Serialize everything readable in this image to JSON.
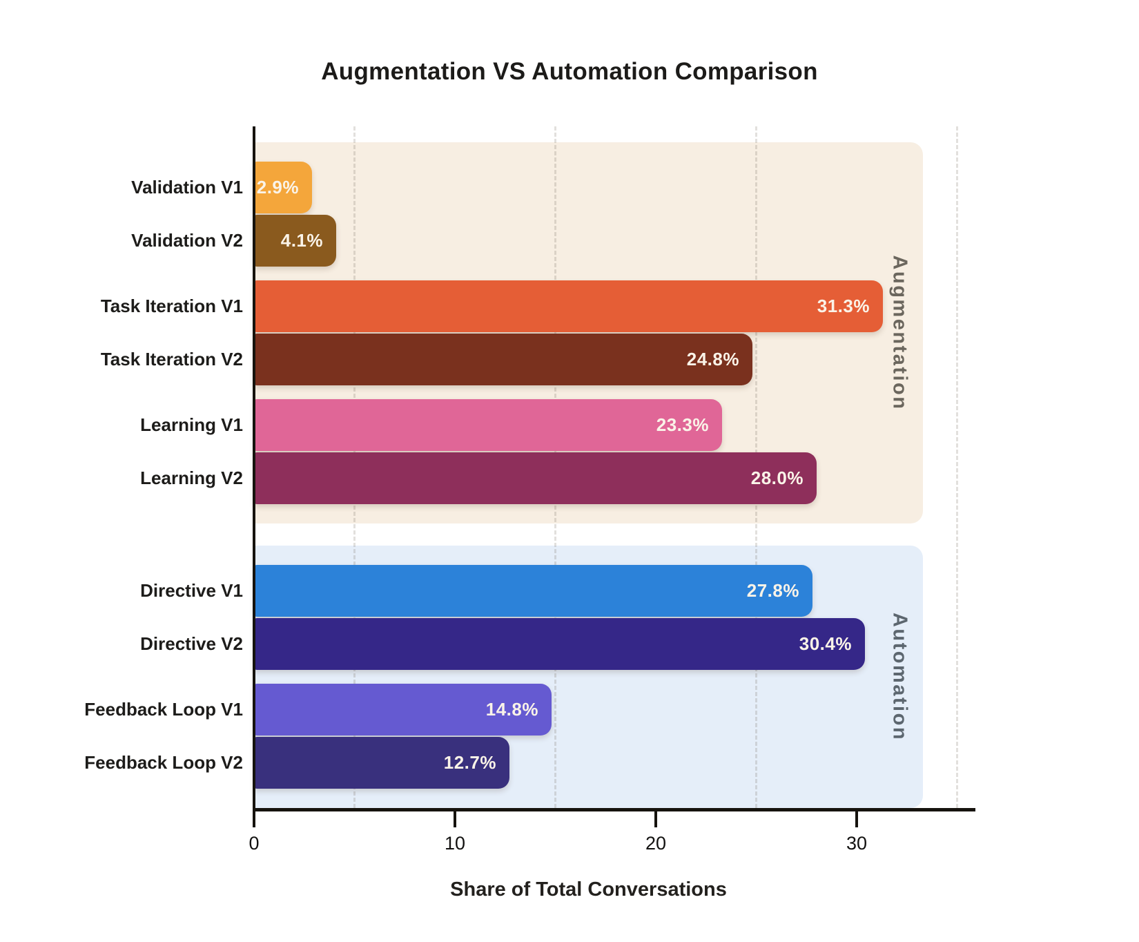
{
  "title": "Augmentation VS Automation Comparison",
  "chart_data": {
    "type": "bar",
    "orientation": "horizontal",
    "title": "Augmentation VS Automation Comparison",
    "xlabel": "Share of Total Conversations",
    "xlim": [
      0,
      36
    ],
    "xticks": [
      0,
      10,
      20,
      30
    ],
    "gridlines_x": [
      5,
      15,
      25,
      35
    ],
    "grid_style": "dashed",
    "value_unit": "%",
    "groups": [
      {
        "name": "Augmentation",
        "band_color": "#F7EEE2",
        "label_color": "#6B665D",
        "bars": [
          {
            "label": "Validation V1",
            "value": 2.9,
            "display": "2.9%",
            "color": "#F4A63B"
          },
          {
            "label": "Validation V2",
            "value": 4.1,
            "display": "4.1%",
            "color": "#8A5A1E"
          },
          {
            "label": "Task Iteration V1",
            "value": 31.3,
            "display": "31.3%",
            "color": "#E55E36"
          },
          {
            "label": "Task Iteration V2",
            "value": 24.8,
            "display": "24.8%",
            "color": "#7A311E"
          },
          {
            "label": "Learning V1",
            "value": 23.3,
            "display": "23.3%",
            "color": "#E06697"
          },
          {
            "label": "Learning V2",
            "value": 28.0,
            "display": "28.0%",
            "color": "#8E2F5B"
          }
        ]
      },
      {
        "name": "Automation",
        "band_color": "#E5EEF9",
        "label_color": "#5C666F",
        "bars": [
          {
            "label": "Directive V1",
            "value": 27.8,
            "display": "27.8%",
            "color": "#2C82D9"
          },
          {
            "label": "Directive V2",
            "value": 30.4,
            "display": "30.4%",
            "color": "#352788"
          },
          {
            "label": "Feedback Loop V1",
            "value": 14.8,
            "display": "14.8%",
            "color": "#655AD1"
          },
          {
            "label": "Feedback Loop V2",
            "value": 12.7,
            "display": "12.7%",
            "color": "#39307D"
          }
        ]
      }
    ]
  }
}
